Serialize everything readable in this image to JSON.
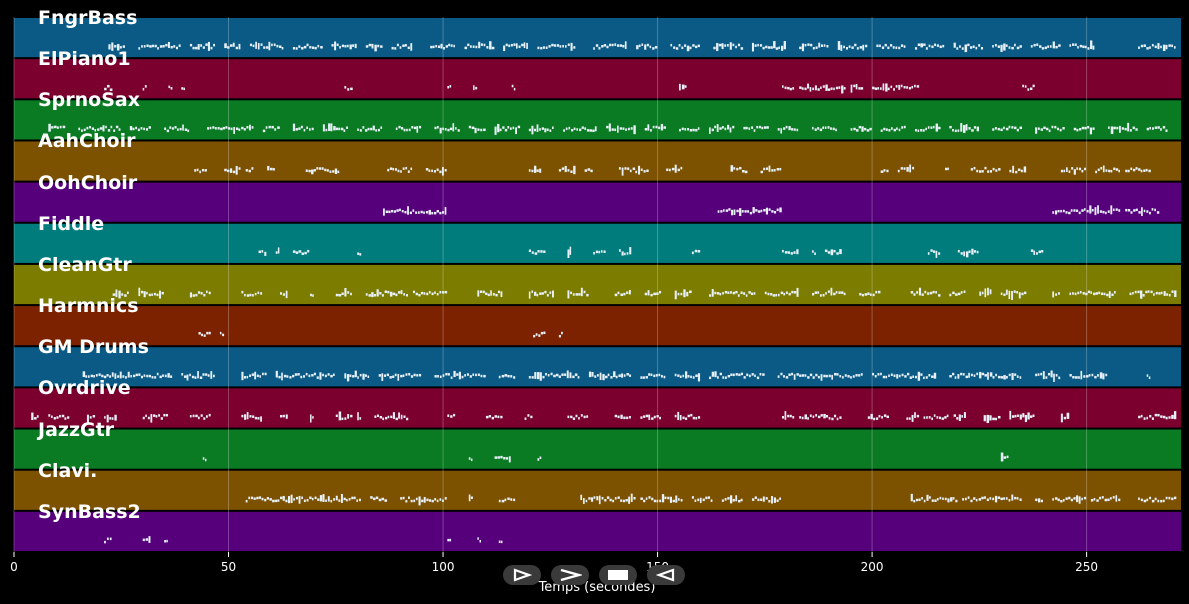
{
  "chart_data": {
    "type": "piano-roll",
    "xlabel": "Temps (secondes)",
    "xlim": [
      0,
      272
    ],
    "xticks": [
      0,
      50,
      100,
      150,
      200,
      250
    ],
    "grid": true,
    "tracks": [
      {
        "name": "FngrBass",
        "color": "#0a5a85",
        "notes": [
          [
            22,
            26
          ],
          [
            29,
            39
          ],
          [
            41,
            47
          ],
          [
            49,
            53
          ],
          [
            55,
            63
          ],
          [
            65,
            72
          ],
          [
            74,
            80
          ],
          [
            82,
            86
          ],
          [
            88,
            93
          ],
          [
            97,
            103
          ],
          [
            105,
            112
          ],
          [
            114,
            120
          ],
          [
            122,
            131
          ],
          [
            135,
            143
          ],
          [
            145,
            150
          ],
          [
            153,
            160
          ],
          [
            163,
            170
          ],
          [
            172,
            180
          ],
          [
            183,
            190
          ],
          [
            192,
            199
          ],
          [
            201,
            208
          ],
          [
            210,
            217
          ],
          [
            219,
            226
          ],
          [
            228,
            235
          ],
          [
            237,
            244
          ],
          [
            246,
            252
          ],
          [
            262,
            271
          ]
        ],
        "density": 0.9
      },
      {
        "name": "ElPiano1",
        "color": "#7c002e",
        "notes": [
          [
            21,
            23
          ],
          [
            30,
            31
          ],
          [
            36,
            37
          ],
          [
            39,
            40
          ],
          [
            77,
            79
          ],
          [
            101,
            102
          ],
          [
            107,
            108
          ],
          [
            116,
            117
          ],
          [
            155,
            157
          ],
          [
            179,
            182
          ],
          [
            183,
            194
          ],
          [
            195,
            198
          ],
          [
            200,
            211
          ],
          [
            235,
            238
          ]
        ],
        "density": 0.5
      },
      {
        "name": "SprnoSax",
        "color": "#0a7b22",
        "notes": [
          [
            8,
            12
          ],
          [
            15,
            25
          ],
          [
            27,
            32
          ],
          [
            35,
            41
          ],
          [
            45,
            56
          ],
          [
            58,
            62
          ],
          [
            65,
            70
          ],
          [
            72,
            78
          ],
          [
            80,
            86
          ],
          [
            89,
            95
          ],
          [
            98,
            104
          ],
          [
            106,
            110
          ],
          [
            112,
            118
          ],
          [
            120,
            126
          ],
          [
            128,
            136
          ],
          [
            138,
            145
          ],
          [
            147,
            152
          ],
          [
            155,
            160
          ],
          [
            162,
            168
          ],
          [
            170,
            176
          ],
          [
            178,
            183
          ],
          [
            186,
            192
          ],
          [
            195,
            200
          ],
          [
            202,
            208
          ],
          [
            210,
            216
          ],
          [
            218,
            225
          ],
          [
            228,
            235
          ],
          [
            238,
            245
          ],
          [
            247,
            252
          ],
          [
            255,
            262
          ],
          [
            264,
            269
          ]
        ],
        "density": 0.9
      },
      {
        "name": "AahChoir",
        "color": "#7c5200",
        "notes": [
          [
            42,
            45
          ],
          [
            49,
            53
          ],
          [
            54,
            56
          ],
          [
            59,
            61
          ],
          [
            68,
            76
          ],
          [
            87,
            93
          ],
          [
            96,
            101
          ],
          [
            120,
            123
          ],
          [
            127,
            131
          ],
          [
            133,
            135
          ],
          [
            141,
            148
          ],
          [
            152,
            156
          ],
          [
            167,
            171
          ],
          [
            174,
            179
          ],
          [
            202,
            204
          ],
          [
            206,
            210
          ],
          [
            217,
            218
          ],
          [
            223,
            230
          ],
          [
            232,
            236
          ],
          [
            244,
            250
          ],
          [
            252,
            258
          ],
          [
            259,
            265
          ]
        ],
        "density": 0.7
      },
      {
        "name": "OohChoir",
        "color": "#56007c",
        "notes": [
          [
            86,
            101
          ],
          [
            164,
            179
          ],
          [
            242,
            258
          ],
          [
            259,
            267
          ]
        ],
        "density": 0.4
      },
      {
        "name": "Fiddle",
        "color": "#007c7c",
        "notes": [
          [
            57,
            59
          ],
          [
            61,
            62
          ],
          [
            65,
            69
          ],
          [
            80,
            81
          ],
          [
            120,
            124
          ],
          [
            129,
            130
          ],
          [
            135,
            138
          ],
          [
            141,
            144
          ],
          [
            158,
            160
          ],
          [
            179,
            183
          ],
          [
            186,
            187
          ],
          [
            189,
            193
          ],
          [
            213,
            216
          ],
          [
            220,
            225
          ],
          [
            237,
            240
          ]
        ],
        "density": 0.5
      },
      {
        "name": "CleanGtr",
        "color": "#7c7c00",
        "notes": [
          [
            23,
            27
          ],
          [
            29,
            35
          ],
          [
            41,
            46
          ],
          [
            53,
            58
          ],
          [
            62,
            64
          ],
          [
            69,
            70
          ],
          [
            75,
            79
          ],
          [
            82,
            92
          ],
          [
            93,
            101
          ],
          [
            108,
            114
          ],
          [
            120,
            126
          ],
          [
            129,
            134
          ],
          [
            140,
            144
          ],
          [
            147,
            151
          ],
          [
            154,
            158
          ],
          [
            162,
            173
          ],
          [
            175,
            183
          ],
          [
            186,
            194
          ],
          [
            197,
            202
          ],
          [
            209,
            216
          ],
          [
            218,
            222
          ],
          [
            225,
            228
          ],
          [
            230,
            236
          ],
          [
            242,
            244
          ],
          [
            246,
            257
          ],
          [
            260,
            271
          ]
        ],
        "density": 0.85
      },
      {
        "name": "Harmnics",
        "color": "#7c2200",
        "notes": [
          [
            43,
            46
          ],
          [
            48,
            49
          ],
          [
            121,
            124
          ],
          [
            127,
            128
          ]
        ],
        "density": 0.3
      },
      {
        "name": "GM Drums",
        "color": "#0a5a85",
        "notes": [
          [
            16,
            37
          ],
          [
            39,
            47
          ],
          [
            53,
            59
          ],
          [
            61,
            75
          ],
          [
            77,
            83
          ],
          [
            85,
            95
          ],
          [
            98,
            110
          ],
          [
            113,
            117
          ],
          [
            120,
            132
          ],
          [
            134,
            144
          ],
          [
            146,
            152
          ],
          [
            154,
            160
          ],
          [
            162,
            175
          ],
          [
            178,
            198
          ],
          [
            200,
            215
          ],
          [
            218,
            235
          ],
          [
            238,
            244
          ],
          [
            246,
            255
          ],
          [
            264,
            265
          ]
        ],
        "density": 0.95
      },
      {
        "name": "Ovrdrive",
        "color": "#7c002e",
        "notes": [
          [
            4,
            6
          ],
          [
            8,
            13
          ],
          [
            17,
            19
          ],
          [
            21,
            24
          ],
          [
            30,
            36
          ],
          [
            41,
            46
          ],
          [
            53,
            58
          ],
          [
            62,
            64
          ],
          [
            69,
            70
          ],
          [
            75,
            79
          ],
          [
            80,
            81
          ],
          [
            84,
            92
          ],
          [
            101,
            103
          ],
          [
            110,
            114
          ],
          [
            119,
            121
          ],
          [
            129,
            134
          ],
          [
            140,
            144
          ],
          [
            146,
            151
          ],
          [
            154,
            160
          ],
          [
            179,
            182
          ],
          [
            183,
            193
          ],
          [
            199,
            204
          ],
          [
            208,
            211
          ],
          [
            212,
            218
          ],
          [
            219,
            222
          ],
          [
            226,
            230
          ],
          [
            232,
            238
          ],
          [
            244,
            246
          ],
          [
            262,
            271
          ]
        ],
        "density": 0.8
      },
      {
        "name": "JazzGtr",
        "color": "#0a7b22",
        "notes": [
          [
            44,
            45
          ],
          [
            106,
            107
          ],
          [
            112,
            116
          ],
          [
            122,
            123
          ],
          [
            230,
            232
          ]
        ],
        "density": 0.3
      },
      {
        "name": "Clavi.",
        "color": "#7c5200",
        "notes": [
          [
            54,
            62
          ],
          [
            62,
            75
          ],
          [
            75,
            81
          ],
          [
            83,
            87
          ],
          [
            90,
            101
          ],
          [
            106,
            107
          ],
          [
            113,
            117
          ],
          [
            132,
            145
          ],
          [
            146,
            156
          ],
          [
            158,
            163
          ],
          [
            165,
            170
          ],
          [
            172,
            179
          ],
          [
            209,
            220
          ],
          [
            221,
            235
          ],
          [
            238,
            240
          ],
          [
            242,
            250
          ],
          [
            251,
            258
          ],
          [
            262,
            271
          ]
        ],
        "density": 0.85
      },
      {
        "name": "SynBass2",
        "color": "#56007c",
        "notes": [
          [
            21,
            23
          ],
          [
            30,
            32
          ],
          [
            35,
            36
          ],
          [
            101,
            102
          ],
          [
            108,
            109
          ],
          [
            113,
            114
          ]
        ],
        "density": 0.3
      }
    ]
  },
  "controls": {
    "play_forward": "play-forward",
    "fast_forward": "fast-forward",
    "stop": "stop",
    "play_back": "play-back"
  }
}
